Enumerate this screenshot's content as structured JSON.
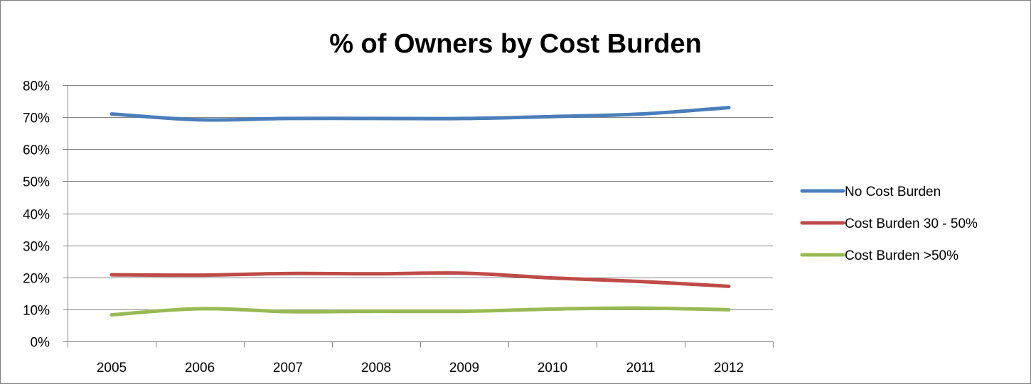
{
  "chart_data": {
    "type": "line",
    "title": "% of Owners by Cost Burden",
    "xlabel": "",
    "ylabel": "",
    "x": [
      "2005",
      "2006",
      "2007",
      "2008",
      "2009",
      "2010",
      "2011",
      "2012"
    ],
    "ylim": [
      0,
      80
    ],
    "yticks": [
      "0%",
      "10%",
      "20%",
      "30%",
      "40%",
      "50%",
      "60%",
      "70%",
      "80%"
    ],
    "ytick_values": [
      0,
      10,
      20,
      30,
      40,
      50,
      60,
      70,
      80
    ],
    "grid": true,
    "legend_position": "right",
    "series": [
      {
        "name": "No Cost Burden",
        "color": "#4a7ebb",
        "values": [
          71.0,
          69.2,
          69.6,
          69.6,
          69.6,
          70.2,
          71.0,
          73.0
        ]
      },
      {
        "name": "Cost Burden 30 - 50%",
        "color": "#be4b48",
        "values": [
          20.8,
          20.7,
          21.2,
          21.1,
          21.3,
          19.8,
          18.7,
          17.2
        ]
      },
      {
        "name": "Cost Burden >50%",
        "color": "#98b954",
        "values": [
          8.3,
          10.2,
          9.3,
          9.4,
          9.4,
          10.1,
          10.4,
          9.9
        ]
      }
    ]
  }
}
